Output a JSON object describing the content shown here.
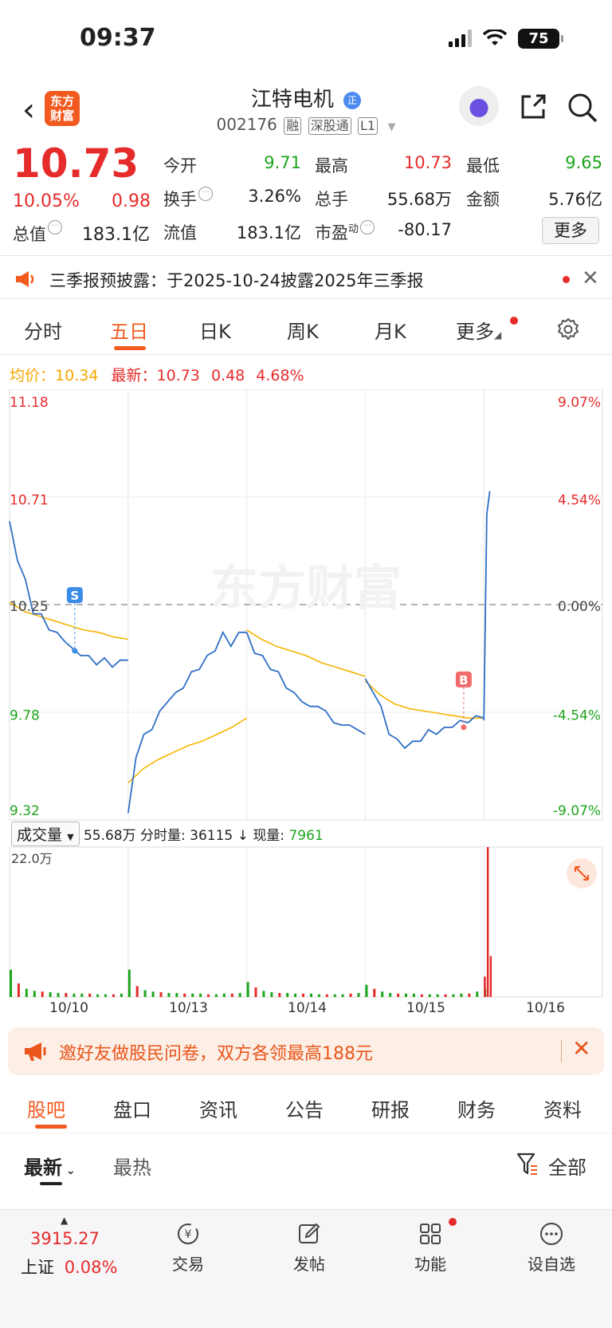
{
  "status": {
    "time": "09:37",
    "battery": "75"
  },
  "header": {
    "logo": [
      "东方",
      "财富"
    ],
    "name": "江特电机",
    "badge": "正",
    "code": "002176",
    "tags": [
      "融",
      "深股通",
      "L1"
    ]
  },
  "quote": {
    "price": "10.73",
    "pct": "10.05%",
    "chg": "0.98",
    "stats": [
      {
        "label": "今开",
        "value": "9.71",
        "color": "green"
      },
      {
        "label": "最高",
        "value": "10.73",
        "color": "red"
      },
      {
        "label": "最低",
        "value": "9.65",
        "color": "green"
      },
      {
        "label": "换手",
        "value": "3.26%",
        "color": ""
      },
      {
        "label": "总手",
        "value": "55.68万",
        "color": ""
      },
      {
        "label": "金额",
        "value": "5.76亿",
        "color": ""
      },
      {
        "label": "流值",
        "value": "183.1亿",
        "color": ""
      },
      {
        "label": "市盈",
        "value": "-80.17",
        "color": ""
      }
    ],
    "total_label": "总值",
    "total_value": "183.1亿",
    "pe_sup": "动",
    "more": "更多"
  },
  "notice": {
    "text": "三季报预披露：于2025-10-24披露2025年三季报"
  },
  "ktabs": [
    "分时",
    "五日",
    "日K",
    "周K",
    "月K",
    "更多"
  ],
  "avg_bar": {
    "avg_label": "均价：",
    "avg_value": "10.34",
    "last_label": "最新：",
    "last_value": "10.73",
    "last_chg": "0.48",
    "last_pct": "4.68%"
  },
  "chart_data": {
    "type": "line",
    "title": "",
    "y_left_ticks": [
      "11.18",
      "10.71",
      "10.25",
      "9.78",
      "9.32"
    ],
    "y_right_ticks": [
      "9.07%",
      "4.54%",
      "0.00%",
      "-4.54%",
      "-9.07%"
    ],
    "ylim": [
      9.32,
      11.18
    ],
    "prev_close": 10.25,
    "days": [
      "10/10",
      "10/13",
      "10/14",
      "10/15",
      "10/16"
    ],
    "price_series": {
      "name": "",
      "day1": [
        10.6,
        10.45,
        10.35,
        10.22,
        10.2,
        10.15,
        10.12,
        10.1,
        10.05,
        10.04,
        10.02,
        10.0,
        10.01,
        9.99,
        10.0,
        10.02
      ],
      "day2": [
        9.34,
        9.6,
        9.68,
        9.72,
        9.78,
        9.84,
        9.86,
        9.9,
        9.95,
        9.98,
        10.02,
        10.06,
        10.12,
        10.08,
        10.12,
        10.14
      ],
      "day3": [
        10.12,
        10.05,
        10.02,
        9.98,
        9.95,
        9.9,
        9.86,
        9.84,
        9.8,
        9.82,
        9.78,
        9.75,
        9.72,
        9.74,
        9.7,
        9.7
      ],
      "day4": [
        9.92,
        9.88,
        9.8,
        9.7,
        9.66,
        9.64,
        9.65,
        9.67,
        9.7,
        9.7,
        9.71,
        9.73,
        9.74,
        9.75,
        9.76,
        9.77
      ],
      "day5": [
        9.74,
        10.65,
        10.73
      ]
    },
    "avg_series": {
      "name": "",
      "day1": [
        10.26,
        10.22,
        10.2,
        10.18,
        10.16,
        10.14,
        10.13,
        10.11,
        10.1
      ],
      "day2": [
        9.48,
        9.54,
        9.58,
        9.61,
        9.64,
        9.66,
        9.69,
        9.72,
        9.76
      ],
      "day3": [
        10.14,
        10.1,
        10.07,
        10.05,
        10.03,
        10.0,
        9.98,
        9.96,
        9.94
      ],
      "day4": [
        9.92,
        9.86,
        9.82,
        9.8,
        9.79,
        9.78,
        9.77,
        9.76,
        9.76
      ]
    },
    "markers": [
      {
        "label": "S",
        "day": "10/10",
        "price": 10.05
      },
      {
        "label": "B",
        "day": "10/15",
        "price": 9.72
      }
    ],
    "watermark": "东方财富"
  },
  "volume": {
    "selector": "成交量",
    "total": "55.68万",
    "minute_label": "分时量:",
    "minute_value": "36115",
    "now_label": "现量:",
    "now_value": "7961",
    "ymax_label": "22.0万",
    "ymax": 220000,
    "bars": [
      {
        "day": "10/10",
        "values": [
          40000,
          20000,
          12000,
          9000,
          8000,
          7000,
          6000,
          6000,
          5000,
          5000,
          5000,
          4000,
          4000,
          4000,
          5000,
          6000
        ]
      },
      {
        "day": "10/13",
        "values": [
          40000,
          16000,
          10000,
          8000,
          7000,
          6000,
          6000,
          5000,
          5000,
          5000,
          4000,
          4000,
          5000,
          5000,
          6000,
          8000
        ]
      },
      {
        "day": "10/14",
        "values": [
          22000,
          14000,
          9000,
          7000,
          6000,
          6000,
          5000,
          5000,
          5000,
          4000,
          4000,
          4000,
          4000,
          5000,
          6000,
          7000
        ]
      },
      {
        "day": "10/15",
        "values": [
          18000,
          12000,
          8000,
          6000,
          5000,
          5000,
          5000,
          4000,
          4000,
          4000,
          4000,
          4000,
          5000,
          5000,
          8000,
          12000
        ]
      },
      {
        "day": "10/16",
        "values": [
          30000,
          220000,
          60000
        ]
      }
    ]
  },
  "promo": {
    "text": "邀好友做股民问卷，双方各领最高188元"
  },
  "btabs": [
    "股吧",
    "盘口",
    "资讯",
    "公告",
    "研报",
    "财务",
    "资料"
  ],
  "sort": {
    "new": "最新",
    "hot": "最热",
    "all": "全部"
  },
  "nav": {
    "index_value": "3915.27",
    "index_name": "上证",
    "index_pct": "0.08%",
    "items": [
      "交易",
      "发帖",
      "功能",
      "设自选"
    ]
  },
  "colors": {
    "accent": "#f25a1f",
    "up": "#e62b2b",
    "down": "#1ea51e",
    "line": "#2f6fc4",
    "avg": "#f5b400"
  }
}
